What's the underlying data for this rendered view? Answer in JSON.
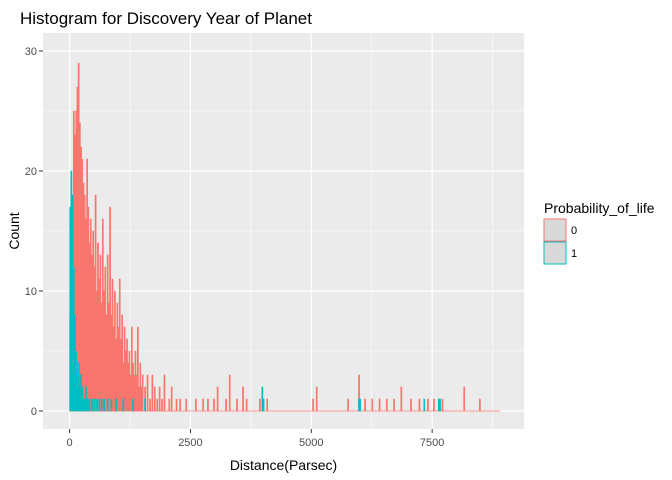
{
  "chart_data": {
    "type": "bar",
    "subtype": "histogram",
    "title": "Histogram for Discovery Year of Planet",
    "xlabel": "Distance(Parsec)",
    "ylabel": "Count",
    "xlim": [
      -550,
      9400
    ],
    "ylim": [
      -1.5,
      31.5
    ],
    "x_ticks": [
      0,
      2500,
      5000,
      7500
    ],
    "x_tick_labels": [
      "0",
      "2500",
      "5000",
      "7500"
    ],
    "y_ticks": [
      0,
      10,
      20,
      30
    ],
    "y_tick_labels": [
      "0",
      "10",
      "20",
      "30"
    ],
    "bin_width": 25,
    "grid": true,
    "background": "#ebebeb",
    "grid_color": "#ffffff",
    "legend": {
      "title": "Probability_of_life",
      "position": "right",
      "entries": [
        {
          "label": "0",
          "color": "#f8766d"
        },
        {
          "label": "1",
          "color": "#00bfc4"
        }
      ]
    },
    "series": [
      {
        "name": "0",
        "color": "#f8766d",
        "points": [
          [
            0,
            8
          ],
          [
            25,
            17
          ],
          [
            50,
            12
          ],
          [
            75,
            25
          ],
          [
            100,
            23
          ],
          [
            125,
            25
          ],
          [
            150,
            27
          ],
          [
            175,
            29
          ],
          [
            200,
            24
          ],
          [
            225,
            22
          ],
          [
            250,
            21
          ],
          [
            275,
            19
          ],
          [
            300,
            18
          ],
          [
            325,
            16
          ],
          [
            350,
            21
          ],
          [
            375,
            17
          ],
          [
            400,
            14
          ],
          [
            425,
            16
          ],
          [
            450,
            13
          ],
          [
            475,
            15
          ],
          [
            500,
            12
          ],
          [
            525,
            18
          ],
          [
            550,
            10
          ],
          [
            575,
            14
          ],
          [
            600,
            11
          ],
          [
            625,
            13
          ],
          [
            650,
            9
          ],
          [
            675,
            16
          ],
          [
            700,
            10
          ],
          [
            725,
            12
          ],
          [
            750,
            8
          ],
          [
            775,
            13
          ],
          [
            800,
            9
          ],
          [
            825,
            17
          ],
          [
            850,
            8
          ],
          [
            875,
            11
          ],
          [
            900,
            7
          ],
          [
            925,
            10
          ],
          [
            950,
            6
          ],
          [
            975,
            9
          ],
          [
            1000,
            7
          ],
          [
            1025,
            11
          ],
          [
            1050,
            6
          ],
          [
            1075,
            8
          ],
          [
            1100,
            4
          ],
          [
            1125,
            7
          ],
          [
            1150,
            5
          ],
          [
            1175,
            6
          ],
          [
            1200,
            4
          ],
          [
            1225,
            5
          ],
          [
            1250,
            3
          ],
          [
            1275,
            7
          ],
          [
            1300,
            4
          ],
          [
            1325,
            3
          ],
          [
            1350,
            5
          ],
          [
            1375,
            3
          ],
          [
            1400,
            7
          ],
          [
            1425,
            2
          ],
          [
            1450,
            4
          ],
          [
            1475,
            2
          ],
          [
            1500,
            3
          ],
          [
            1550,
            2
          ],
          [
            1600,
            3
          ],
          [
            1650,
            1
          ],
          [
            1700,
            3
          ],
          [
            1750,
            2
          ],
          [
            1800,
            1
          ],
          [
            1850,
            2
          ],
          [
            1900,
            1
          ],
          [
            1950,
            3
          ],
          [
            2050,
            1
          ],
          [
            2100,
            2
          ],
          [
            2200,
            1
          ],
          [
            2275,
            1
          ],
          [
            2400,
            1
          ],
          [
            2600,
            1
          ],
          [
            2750,
            1
          ],
          [
            2850,
            1
          ],
          [
            2975,
            1
          ],
          [
            3050,
            2
          ],
          [
            3225,
            1
          ],
          [
            3300,
            3
          ],
          [
            3450,
            1
          ],
          [
            3575,
            2
          ],
          [
            3650,
            1
          ],
          [
            3925,
            1
          ],
          [
            4075,
            1
          ],
          [
            5025,
            1
          ],
          [
            5100,
            2
          ],
          [
            5750,
            1
          ],
          [
            5975,
            3
          ],
          [
            6100,
            1
          ],
          [
            6250,
            1
          ],
          [
            6400,
            1
          ],
          [
            6550,
            1
          ],
          [
            6700,
            1
          ],
          [
            6850,
            2
          ],
          [
            7050,
            1
          ],
          [
            7225,
            1
          ],
          [
            7400,
            1
          ],
          [
            7525,
            1
          ],
          [
            7700,
            1
          ],
          [
            8150,
            2
          ],
          [
            8475,
            1
          ]
        ]
      },
      {
        "name": "1",
        "color": "#00bfc4",
        "points": [
          [
            0,
            17
          ],
          [
            25,
            20
          ],
          [
            50,
            18
          ],
          [
            75,
            12
          ],
          [
            100,
            8
          ],
          [
            125,
            5
          ],
          [
            150,
            3
          ],
          [
            175,
            4
          ],
          [
            200,
            2
          ],
          [
            225,
            3
          ],
          [
            250,
            2
          ],
          [
            275,
            1
          ],
          [
            300,
            1
          ],
          [
            325,
            2
          ],
          [
            350,
            1
          ],
          [
            375,
            1
          ],
          [
            400,
            1
          ],
          [
            450,
            1
          ],
          [
            500,
            1
          ],
          [
            550,
            1
          ],
          [
            600,
            1
          ],
          [
            650,
            1
          ],
          [
            700,
            1
          ],
          [
            775,
            1
          ],
          [
            850,
            1
          ],
          [
            950,
            1
          ],
          [
            1100,
            1
          ],
          [
            1300,
            1
          ],
          [
            1550,
            1
          ],
          [
            3975,
            2
          ],
          [
            4000,
            1
          ],
          [
            5975,
            1
          ],
          [
            6000,
            1
          ],
          [
            7325,
            1
          ],
          [
            7625,
            1
          ],
          [
            7650,
            1
          ]
        ]
      }
    ]
  }
}
